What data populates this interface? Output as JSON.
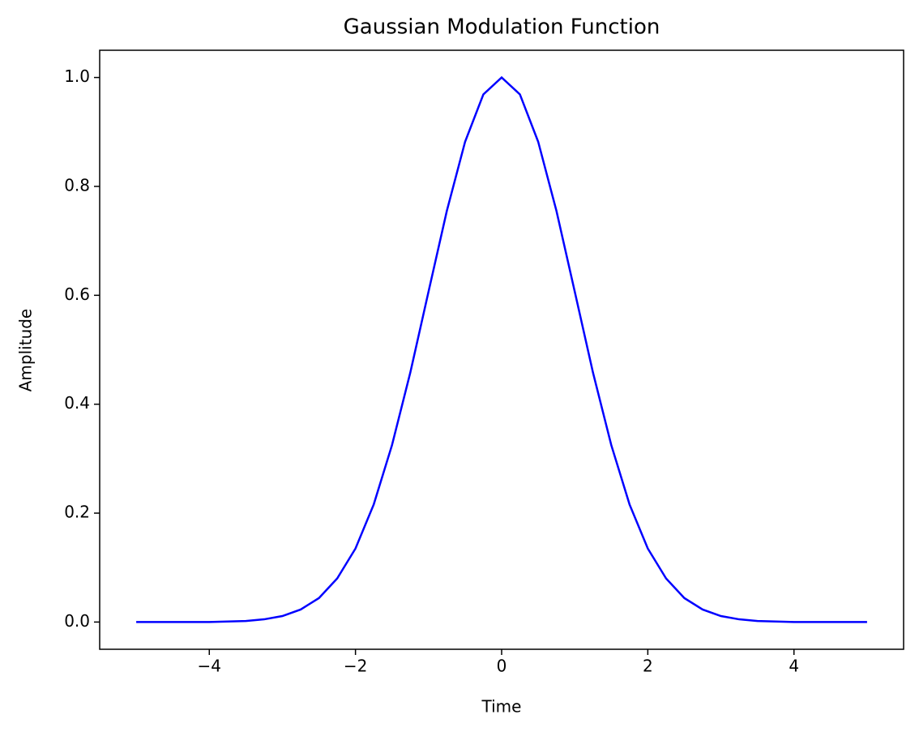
{
  "chart_data": {
    "type": "line",
    "title": "Gaussian Modulation Function",
    "xlabel": "Time",
    "ylabel": "Amplitude",
    "x": [
      -5,
      -4.75,
      -4.5,
      -4.25,
      -4,
      -3.75,
      -3.5,
      -3.25,
      -3,
      -2.75,
      -2.5,
      -2.25,
      -2,
      -1.75,
      -1.5,
      -1.25,
      -1,
      -0.75,
      -0.5,
      -0.25,
      0,
      0.25,
      0.5,
      0.75,
      1,
      1.25,
      1.5,
      1.75,
      2,
      2.25,
      2.5,
      2.75,
      3,
      3.25,
      3.5,
      3.75,
      4,
      4.25,
      4.5,
      4.75,
      5
    ],
    "series": [
      {
        "color": "#0000ff",
        "values": [
          0,
          0,
          0,
          0,
          0,
          0.001,
          0.002,
          0.005,
          0.011,
          0.023,
          0.044,
          0.08,
          0.135,
          0.216,
          0.325,
          0.458,
          0.607,
          0.755,
          0.882,
          0.969,
          1,
          0.969,
          0.882,
          0.755,
          0.607,
          0.458,
          0.325,
          0.216,
          0.135,
          0.08,
          0.044,
          0.023,
          0.011,
          0.005,
          0.002,
          0.001,
          0,
          0,
          0,
          0,
          0
        ]
      }
    ],
    "xlim": [
      -5.5,
      5.5
    ],
    "ylim": [
      -0.05,
      1.05
    ],
    "xticks": [
      {
        "value": -4,
        "label": "−4"
      },
      {
        "value": -2,
        "label": "−2"
      },
      {
        "value": 0,
        "label": "0"
      },
      2,
      4
    ],
    "yticks": [
      {
        "value": 0,
        "label": "0.0"
      },
      0.2,
      0.4,
      0.6,
      0.8,
      {
        "value": 1,
        "label": "1.0"
      }
    ],
    "grid": false
  }
}
